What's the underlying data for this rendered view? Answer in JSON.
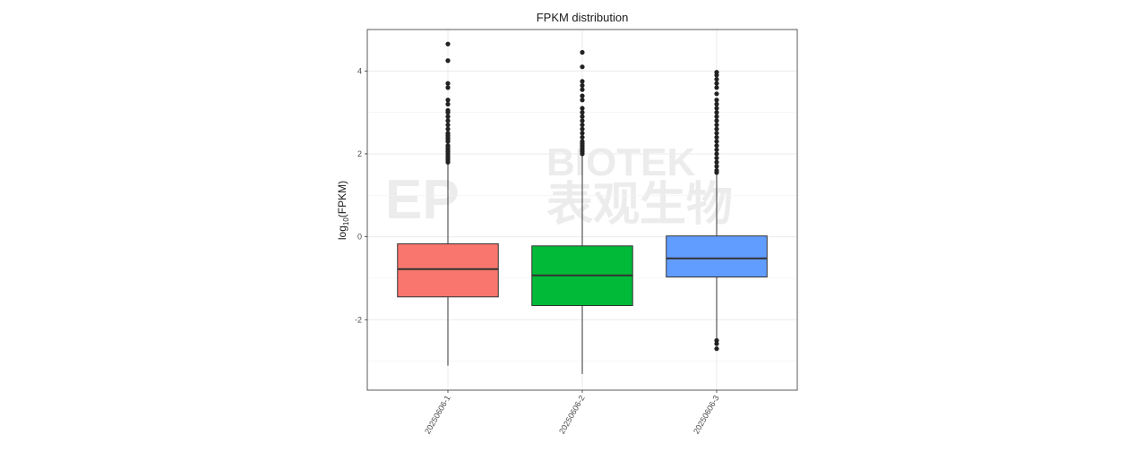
{
  "chart_data": {
    "type": "box",
    "title": "FPKM distribution",
    "y_label": [
      "log",
      "10",
      "(FPKM)"
    ],
    "watermark": [
      "EP",
      "BIOTEK",
      "表观生物"
    ],
    "ylim": [
      -3.7,
      5.0
    ],
    "yticks": [
      -2,
      0,
      2,
      4
    ],
    "minor_grid": [
      -3,
      -1,
      1,
      3
    ],
    "grid": true,
    "categories": [
      "20250606-1",
      "20250606-2",
      "20250606-3"
    ],
    "series": [
      {
        "name": "20250606-1",
        "color": "#f8766d",
        "whislo": -3.11,
        "q1": -1.45,
        "med": -0.78,
        "q3": -0.17,
        "whishi": 1.75,
        "outliers": [
          1.8,
          1.85,
          1.9,
          1.95,
          2.0,
          2.05,
          2.1,
          2.15,
          2.2,
          2.3,
          2.35,
          2.4,
          2.45,
          2.5,
          2.6,
          2.7,
          2.8,
          2.9,
          3.0,
          3.05,
          3.2,
          3.3,
          3.6,
          3.7,
          4.25,
          4.65
        ]
      },
      {
        "name": "20250606-2",
        "color": "#00ba38",
        "whislo": -3.31,
        "q1": -1.66,
        "med": -0.93,
        "q3": -0.22,
        "whishi": 1.95,
        "outliers": [
          2.0,
          2.05,
          2.1,
          2.15,
          2.2,
          2.25,
          2.3,
          2.4,
          2.5,
          2.6,
          2.7,
          2.8,
          2.9,
          3.0,
          3.1,
          3.3,
          3.4,
          3.55,
          3.65,
          3.75,
          4.1,
          4.45
        ]
      },
      {
        "name": "20250606-3",
        "color": "#619cff",
        "whislo": -2.45,
        "q1": -0.97,
        "med": -0.52,
        "q3": 0.02,
        "whishi": 1.5,
        "outliers": [
          -2.5,
          -2.58,
          -2.7,
          1.55,
          1.6,
          1.7,
          1.8,
          1.9,
          2.0,
          2.1,
          2.2,
          2.3,
          2.4,
          2.5,
          2.6,
          2.7,
          2.8,
          2.9,
          3.0,
          3.1,
          3.2,
          3.3,
          3.45,
          3.6,
          3.7,
          3.8,
          3.9,
          3.97
        ]
      }
    ]
  }
}
